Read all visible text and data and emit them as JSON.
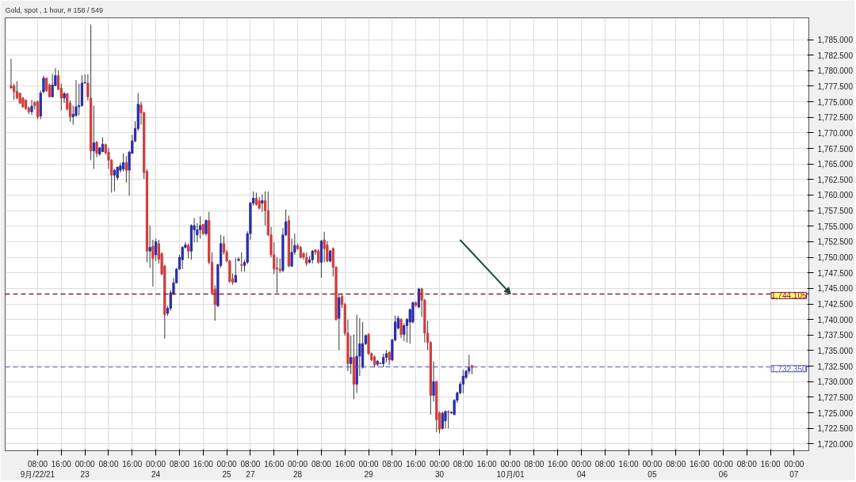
{
  "chart_data": {
    "type": "candlestick",
    "title": "Gold, spot , 1 hour, # 158 / 549",
    "colors": [
      "#d23c3c",
      "#d23c3c",
      "#d23c3c",
      "#d23c3c",
      "#d23c3c",
      "#d23c3c",
      "#d23c3c",
      "#2b2ba8",
      "#d23c3c",
      "#d23c3c",
      "#2b2ba8",
      "#2b2ba8",
      "#d23c3c",
      "#d23c3c",
      "#2b2ba8",
      "#2b2ba8",
      "#d23c3c",
      "#d23c3c",
      "#2b2ba8",
      "#d23c3c",
      "#d23c3c",
      "#2b2ba8",
      "#2b2ba8",
      "#2b2ba8",
      "#2b2ba8",
      "#2b2ba8",
      "#d23c3c",
      "#d23c3c",
      "#2b2ba8",
      "#d23c3c",
      "#2b2ba8",
      "#2b2ba8",
      "#d23c3c",
      "#d23c3c",
      "#d23c3c",
      "#2b2ba8",
      "#2b2ba8",
      "#2b2ba8",
      "#2b2ba8",
      "#d23c3c",
      "#2b2ba8",
      "#2b2ba8",
      "#2b2ba8",
      "#2b2ba8",
      "#d23c3c",
      "#d23c3c",
      "#d23c3c",
      "#2b2ba8",
      "#d23c3c",
      "#2b2ba8",
      "#d23c3c",
      "#d23c3c",
      "#d23c3c",
      "#2b2ba8",
      "#2b2ba8",
      "#2b2ba8",
      "#2b2ba8",
      "#2b2ba8",
      "#2b2ba8",
      "#2b2ba8",
      "#d23c3c",
      "#2b2ba8",
      "#2b2ba8",
      "#2b2ba8",
      "#2b2ba8",
      "#d23c3c",
      "#2b2ba8",
      "#d23c3c",
      "#d23c3c",
      "#d23c3c",
      "#2b2ba8",
      "#2b2ba8",
      "#d23c3c",
      "#d23c3c",
      "#d23c3c",
      "#d23c3c",
      "#2b2ba8",
      "#2b2ba8",
      "#d23c3c",
      "#2b2ba8",
      "#2b2ba8",
      "#2b2ba8",
      "#2b2ba8",
      "#d23c3c",
      "#d23c3c",
      "#2b2ba8",
      "#d23c3c",
      "#d23c3c",
      "#d23c3c",
      "#d23c3c",
      "#d23c3c",
      "#d23c3c",
      "#2b2ba8",
      "#2b2ba8",
      "#d23c3c",
      "#2b2ba8",
      "#2b2ba8",
      "#d23c3c",
      "#d23c3c",
      "#d23c3c",
      "#d23c3c",
      "#2b2ba8",
      "#2b2ba8",
      "#d23c3c",
      "#d23c3c",
      "#2b2ba8",
      "#d23c3c",
      "#d23c3c",
      "#2b2ba8",
      "#d23c3c",
      "#d23c3c",
      "#2b2ba8",
      "#d23c3c",
      "#d23c3c",
      "#d23c3c",
      "#2b2ba8",
      "#d23c3c",
      "#2b2ba8",
      "#2b2ba8",
      "#2b2ba8",
      "#2b2ba8",
      "#d23c3c",
      "#d23c3c",
      "#d23c3c",
      "#2b2ba8",
      "#d23c3c",
      "#2b2ba8",
      "#2b2ba8",
      "#d23c3c",
      "#2b2ba8",
      "#2b2ba8",
      "#2b2ba8",
      "#d23c3c",
      "#2b2ba8",
      "#2b2ba8",
      "#2b2ba8",
      "#2b2ba8",
      "#d23c3c",
      "#2b2ba8",
      "#d23c3c",
      "#d23c3c",
      "#d23c3c",
      "#d23c3c",
      "#2b2ba8",
      "#d23c3c",
      "#d23c3c",
      "#2b2ba8",
      "#2b2ba8",
      "#d23c3c",
      "#2b2ba8",
      "#2b2ba8",
      "#2b2ba8",
      "#2b2ba8",
      "#2b2ba8",
      "#2b2ba8",
      "#2b2ba8",
      "#d23c3c",
      null,
      null,
      null,
      null,
      null,
      null,
      null,
      null,
      null,
      null,
      null,
      null,
      null,
      null,
      null,
      null,
      null,
      null,
      null,
      null,
      null,
      null,
      null,
      null,
      null,
      null,
      null,
      null,
      null,
      null,
      null,
      null,
      null,
      null,
      null,
      null,
      null,
      null,
      null,
      null,
      null,
      null,
      null,
      null,
      null,
      null,
      null,
      null,
      null,
      null,
      null,
      null,
      null,
      null,
      null,
      null,
      null,
      null,
      null,
      null,
      null,
      null,
      null,
      null,
      null,
      null,
      null,
      null,
      null,
      null,
      null,
      null,
      null,
      null,
      null,
      null,
      null,
      null,
      null,
      null,
      null,
      null,
      null,
      null,
      null,
      null,
      null,
      null,
      null,
      null,
      null,
      null,
      null,
      null,
      null,
      null,
      null,
      null,
      null,
      null,
      null,
      null,
      null,
      null,
      null,
      null,
      null,
      null,
      null,
      null,
      null,
      null,
      null
    ],
    "grid": true,
    "categories": [
      null,
      null,
      null,
      null,
      null,
      null,
      null,
      null,
      null,
      "08:00\n9月/22/21",
      null,
      null,
      null,
      null,
      null,
      null,
      null,
      "16:00",
      null,
      null,
      null,
      null,
      null,
      null,
      null,
      "00:00\n23",
      null,
      null,
      null,
      null,
      null,
      null,
      null,
      "08:00",
      null,
      null,
      null,
      null,
      null,
      null,
      null,
      "16:00",
      null,
      null,
      null,
      null,
      null,
      null,
      null,
      "00:00\n24",
      null,
      null,
      null,
      null,
      null,
      null,
      null,
      "08:00",
      null,
      null,
      null,
      null,
      null,
      null,
      null,
      "16:00",
      null,
      null,
      null,
      null,
      null,
      null,
      null,
      "00:00\n25",
      null,
      null,
      null,
      null,
      null,
      null,
      null,
      "08:00\n27",
      null,
      null,
      null,
      null,
      null,
      null,
      null,
      "16:00",
      null,
      null,
      null,
      null,
      null,
      null,
      null,
      "00:00\n28",
      null,
      null,
      null,
      null,
      null,
      null,
      null,
      "08:00",
      null,
      null,
      null,
      null,
      null,
      null,
      null,
      "16:00",
      null,
      null,
      null,
      null,
      null,
      null,
      null,
      "00:00\n29",
      null,
      null,
      null,
      null,
      null,
      null,
      null,
      "08:00",
      null,
      null,
      null,
      null,
      null,
      null,
      null,
      "16:00",
      null,
      null,
      null,
      null,
      null,
      null,
      null,
      "00:00\n30",
      null,
      null,
      null,
      null,
      null,
      null,
      null,
      "08:00",
      null,
      null,
      null,
      null,
      null,
      null,
      null,
      "16:00",
      null,
      null,
      null,
      null,
      null,
      null,
      null,
      "00:00\n10月/01",
      null,
      null,
      null,
      null,
      null,
      null,
      null,
      "08:00",
      null,
      null,
      null,
      null,
      null,
      null,
      null,
      "16:00",
      null,
      null,
      null,
      null,
      null,
      null,
      null,
      "00:00\n04",
      null,
      null,
      null,
      null,
      null,
      null,
      null,
      "08:00",
      null,
      null,
      null,
      null,
      null,
      null,
      null,
      "16:00",
      null,
      null,
      null,
      null,
      null,
      null,
      null,
      "00:00\n05",
      null,
      null,
      null,
      null,
      null,
      null,
      null,
      "08:00",
      null,
      null,
      null,
      null,
      null,
      null,
      null,
      "16:00",
      null,
      null,
      null,
      null,
      null,
      null,
      null,
      "00:00\n06",
      null,
      null,
      null,
      null,
      null,
      null,
      null,
      "08:00",
      null,
      null,
      null,
      null,
      null,
      null,
      null,
      "16:00",
      null,
      null,
      null,
      null,
      null,
      null,
      null,
      "00:00\n07",
      null,
      null,
      null,
      null
    ],
    "ylim": [
      1718.9,
      1788.5
    ],
    "yticks": [
      {
        "value": 1720,
        "label": "1,720.000"
      },
      {
        "value": 1722.5,
        "label": "1,722.500"
      },
      {
        "value": 1725,
        "label": "1,725.000"
      },
      {
        "value": 1727.5,
        "label": "1,727.500"
      },
      {
        "value": 1730,
        "label": "1,730.000"
      },
      {
        "value": 1732.5,
        "label": "1,732.500"
      },
      {
        "value": 1735,
        "label": "1,735.000"
      },
      {
        "value": 1737.5,
        "label": "1,737.500"
      },
      {
        "value": 1740,
        "label": "1,740.000"
      },
      {
        "value": 1742.5,
        "label": "1,742.500"
      },
      {
        "value": 1745,
        "label": "1,745.000"
      },
      {
        "value": 1747.5,
        "label": "1,747.500"
      },
      {
        "value": 1750,
        "label": "1,750.000"
      },
      {
        "value": 1752.5,
        "label": "1,752.500"
      },
      {
        "value": 1755,
        "label": "1,755.000"
      },
      {
        "value": 1757.5,
        "label": "1,757.500"
      },
      {
        "value": 1760,
        "label": "1,760.000"
      },
      {
        "value": 1762.5,
        "label": "1,762.500"
      },
      {
        "value": 1765,
        "label": "1,765.000"
      },
      {
        "value": 1767.5,
        "label": "1,767.500"
      },
      {
        "value": 1770,
        "label": "1,770.000"
      },
      {
        "value": 1772.5,
        "label": "1,772.500"
      },
      {
        "value": 1775,
        "label": "1,775.000"
      },
      {
        "value": 1777.5,
        "label": "1,777.500"
      },
      {
        "value": 1780,
        "label": "1,780.000"
      },
      {
        "value": 1782.5,
        "label": "1,782.500"
      },
      {
        "value": 1785,
        "label": "1,785.000"
      }
    ],
    "ref_lines": [
      {
        "axis": "y",
        "value": 1744.105,
        "label": "1,744.105",
        "color": "#7b2040",
        "line_style": "dashed"
      },
      {
        "axis": "y",
        "value": 1732.35,
        "label": "1,732.350",
        "color": "#5a5ac8",
        "line_style": "dashed"
      }
    ],
    "ohlc": [
      [
        1777.6,
        1781.9,
        1777.2,
        1777.2
      ],
      [
        1777.5,
        1777.9,
        1775.3,
        1776.6
      ],
      [
        1776.7,
        1778.3,
        1775.4,
        1775.6
      ],
      [
        1776.4,
        1776.4,
        1774.6,
        1774.8
      ],
      [
        1775.6,
        1775.8,
        1774.0,
        1774.2
      ],
      [
        1775.3,
        1775.3,
        1773.7,
        1773.9
      ],
      [
        1774.0,
        1774.2,
        1773.0,
        1773.4
      ],
      [
        1773.4,
        1775.3,
        1772.9,
        1774.3
      ],
      [
        1774.9,
        1775.1,
        1773.8,
        1774.4
      ],
      [
        1775.0,
        1775.2,
        1772.2,
        1772.6
      ],
      [
        1772.7,
        1776.8,
        1772.2,
        1776.4
      ],
      [
        1776.6,
        1779.2,
        1776.4,
        1778.8
      ],
      [
        1778.8,
        1778.9,
        1776.6,
        1776.8
      ],
      [
        1777.7,
        1777.9,
        1775.7,
        1775.8
      ],
      [
        1775.8,
        1779.5,
        1775.7,
        1777.7
      ],
      [
        1777.6,
        1780.4,
        1777.5,
        1779.2
      ],
      [
        1779.2,
        1780.0,
        1776.9,
        1777.0
      ],
      [
        1777.2,
        1777.9,
        1773.6,
        1775.6
      ],
      [
        1775.6,
        1776.6,
        1774.8,
        1776.3
      ],
      [
        1776.3,
        1776.4,
        1773.6,
        1773.8
      ],
      [
        1774.8,
        1775.2,
        1771.8,
        1772.6
      ],
      [
        1772.6,
        1774.4,
        1771.3,
        1773.0
      ],
      [
        1772.8,
        1778.5,
        1772.6,
        1774.2
      ],
      [
        1774.2,
        1777.9,
        1772.8,
        1774.4
      ],
      [
        1774.4,
        1779.3,
        1774.2,
        1778.0
      ],
      [
        1778.0,
        1779.4,
        1778.0,
        1778.1
      ],
      [
        1778.0,
        1779.4,
        1775.2,
        1775.8
      ],
      [
        1775.6,
        1787.4,
        1765.6,
        1767.1
      ],
      [
        1767.1,
        1774.4,
        1764.2,
        1768.4
      ],
      [
        1768.5,
        1768.7,
        1766.1,
        1766.7
      ],
      [
        1766.6,
        1767.7,
        1766.3,
        1767.6
      ],
      [
        1767.0,
        1769.3,
        1766.9,
        1768.2
      ],
      [
        1768.1,
        1768.3,
        1766.5,
        1766.8
      ],
      [
        1766.9,
        1767.6,
        1764.2,
        1765.6
      ],
      [
        1765.6,
        1765.8,
        1760.4,
        1763.2
      ],
      [
        1763.2,
        1764.2,
        1760.6,
        1764.0
      ],
      [
        1762.8,
        1764.6,
        1762.4,
        1764.5
      ],
      [
        1764.0,
        1765.2,
        1763.6,
        1764.7
      ],
      [
        1764.2,
        1766.7,
        1763.8,
        1765.2
      ],
      [
        1765.2,
        1766.3,
        1762.0,
        1764.0
      ],
      [
        1764.0,
        1767.1,
        1759.9,
        1766.9
      ],
      [
        1766.7,
        1769.7,
        1766.7,
        1768.7
      ],
      [
        1768.7,
        1771.9,
        1768.5,
        1770.7
      ],
      [
        1770.7,
        1776.4,
        1770.3,
        1774.6
      ],
      [
        1774.5,
        1775.0,
        1771.3,
        1773.2
      ],
      [
        1773.2,
        1773.4,
        1762.6,
        1763.6
      ],
      [
        1763.8,
        1764.2,
        1749.2,
        1751.0
      ],
      [
        1751.0,
        1755.1,
        1748.3,
        1751.6
      ],
      [
        1751.8,
        1752.8,
        1745.3,
        1749.8
      ],
      [
        1750.4,
        1753.0,
        1749.4,
        1752.5
      ],
      [
        1752.2,
        1752.8,
        1749.0,
        1749.7
      ],
      [
        1750.6,
        1750.8,
        1747.1,
        1747.3
      ],
      [
        1748.6,
        1748.8,
        1736.9,
        1740.8
      ],
      [
        1741.0,
        1742.2,
        1740.6,
        1741.8
      ],
      [
        1741.8,
        1744.7,
        1741.4,
        1744.3
      ],
      [
        1744.1,
        1746.7,
        1743.9,
        1745.9
      ],
      [
        1745.9,
        1748.3,
        1745.8,
        1748.1
      ],
      [
        1748.1,
        1750.4,
        1748.0,
        1750.0
      ],
      [
        1749.6,
        1751.8,
        1748.1,
        1751.6
      ],
      [
        1751.6,
        1752.4,
        1751.4,
        1752.0
      ],
      [
        1751.9,
        1752.2,
        1749.8,
        1751.0
      ],
      [
        1751.0,
        1755.3,
        1749.6,
        1755.1
      ],
      [
        1754.4,
        1756.3,
        1752.4,
        1755.1
      ],
      [
        1753.6,
        1755.5,
        1752.4,
        1754.4
      ],
      [
        1754.4,
        1756.6,
        1753.0,
        1755.1
      ],
      [
        1755.3,
        1755.3,
        1753.6,
        1753.8
      ],
      [
        1753.8,
        1756.1,
        1753.4,
        1755.9
      ],
      [
        1755.9,
        1757.3,
        1748.9,
        1749.2
      ],
      [
        1749.2,
        1750.8,
        1744.1,
        1744.3
      ],
      [
        1744.9,
        1745.5,
        1739.8,
        1742.4
      ],
      [
        1742.2,
        1749.0,
        1742.0,
        1748.8
      ],
      [
        1748.7,
        1753.6,
        1748.3,
        1752.2
      ],
      [
        1752.2,
        1753.4,
        1750.4,
        1750.8
      ],
      [
        1750.8,
        1751.2,
        1749.2,
        1749.4
      ],
      [
        1749.4,
        1749.6,
        1745.9,
        1746.1
      ],
      [
        1746.5,
        1747.4,
        1745.6,
        1746.0
      ],
      [
        1746.0,
        1749.9,
        1745.9,
        1747.1
      ],
      [
        1749.5,
        1750.0,
        1749.3,
        1749.7
      ],
      [
        1748.8,
        1750.8,
        1747.7,
        1748.7
      ],
      [
        1748.7,
        1749.6,
        1747.7,
        1749.2
      ],
      [
        1749.2,
        1754.2,
        1748.9,
        1753.8
      ],
      [
        1753.8,
        1758.9,
        1752.8,
        1758.7
      ],
      [
        1758.7,
        1760.6,
        1758.3,
        1759.5
      ],
      [
        1759.5,
        1760.4,
        1758.3,
        1758.5
      ],
      [
        1759.1,
        1759.7,
        1757.7,
        1757.9
      ],
      [
        1758.7,
        1760.1,
        1757.3,
        1759.1
      ],
      [
        1759.1,
        1760.6,
        1755.1,
        1757.5
      ],
      [
        1757.5,
        1760.6,
        1753.4,
        1753.6
      ],
      [
        1753.6,
        1754.9,
        1750.0,
        1750.4
      ],
      [
        1750.4,
        1752.4,
        1747.3,
        1748.1
      ],
      [
        1748.3,
        1750.0,
        1744.3,
        1748.1
      ],
      [
        1748.1,
        1749.8,
        1747.5,
        1747.9
      ],
      [
        1747.9,
        1754.7,
        1747.6,
        1753.6
      ],
      [
        1753.6,
        1757.7,
        1753.4,
        1755.7
      ],
      [
        1755.9,
        1756.7,
        1748.4,
        1748.6
      ],
      [
        1748.6,
        1753.0,
        1748.4,
        1750.8
      ],
      [
        1750.8,
        1753.8,
        1750.4,
        1751.9
      ],
      [
        1751.9,
        1752.2,
        1751.2,
        1751.4
      ],
      [
        1751.6,
        1751.8,
        1749.8,
        1750.0
      ],
      [
        1750.6,
        1750.8,
        1749.6,
        1750.0
      ],
      [
        1750.0,
        1750.8,
        1748.6,
        1749.0
      ],
      [
        1749.2,
        1750.2,
        1749.0,
        1749.6
      ],
      [
        1749.6,
        1751.2,
        1749.0,
        1751.0
      ],
      [
        1751.2,
        1751.3,
        1750.4,
        1750.8
      ],
      [
        1751.0,
        1751.3,
        1749.0,
        1749.2
      ],
      [
        1749.2,
        1752.8,
        1746.7,
        1752.6
      ],
      [
        1752.8,
        1754.1,
        1749.2,
        1751.4
      ],
      [
        1752.0,
        1752.6,
        1749.2,
        1749.4
      ],
      [
        1749.4,
        1751.2,
        1749.2,
        1751.0
      ],
      [
        1751.4,
        1751.6,
        1746.9,
        1748.4
      ],
      [
        1748.4,
        1748.6,
        1739.8,
        1740.0
      ],
      [
        1740.2,
        1744.1,
        1735.1,
        1743.5
      ],
      [
        1743.7,
        1744.1,
        1741.8,
        1742.4
      ],
      [
        1742.4,
        1742.7,
        1737.4,
        1737.8
      ],
      [
        1737.8,
        1740.0,
        1731.7,
        1732.9
      ],
      [
        1732.9,
        1737.4,
        1731.2,
        1733.9
      ],
      [
        1733.9,
        1737.6,
        1727.2,
        1729.6
      ],
      [
        1729.6,
        1740.8,
        1728.2,
        1734.1
      ],
      [
        1734.1,
        1740.2,
        1730.9,
        1736.1
      ],
      [
        1732.3,
        1739.6,
        1732.1,
        1736.1
      ],
      [
        1736.1,
        1737.6,
        1735.9,
        1737.4
      ],
      [
        1737.6,
        1737.8,
        1734.3,
        1734.5
      ],
      [
        1734.5,
        1734.7,
        1733.3,
        1733.5
      ],
      [
        1734.0,
        1734.2,
        1732.3,
        1732.7
      ],
      [
        1732.8,
        1733.5,
        1732.5,
        1733.3
      ],
      [
        1733.0,
        1733.1,
        1732.9,
        1732.9
      ],
      [
        1732.9,
        1734.5,
        1732.3,
        1733.9
      ],
      [
        1733.9,
        1735.1,
        1733.1,
        1734.5
      ],
      [
        1734.7,
        1734.9,
        1732.7,
        1733.5
      ],
      [
        1733.5,
        1736.9,
        1733.3,
        1736.7
      ],
      [
        1736.7,
        1740.6,
        1736.5,
        1739.6
      ],
      [
        1738.6,
        1740.6,
        1738.4,
        1740.2
      ],
      [
        1740.0,
        1740.2,
        1737.0,
        1737.6
      ],
      [
        1737.6,
        1739.4,
        1736.5,
        1739.0
      ],
      [
        1739.0,
        1740.2,
        1736.3,
        1740.0
      ],
      [
        1739.6,
        1741.8,
        1736.1,
        1741.6
      ],
      [
        1739.6,
        1742.9,
        1739.4,
        1742.7
      ],
      [
        1742.7,
        1742.9,
        1742.0,
        1742.3
      ],
      [
        1742.0,
        1745.1,
        1741.8,
        1744.9
      ],
      [
        1744.9,
        1745.1,
        1740.4,
        1743.1
      ],
      [
        1743.1,
        1743.3,
        1736.3,
        1737.8
      ],
      [
        1737.8,
        1739.8,
        1735.1,
        1736.3
      ],
      [
        1736.3,
        1736.5,
        1724.7,
        1727.8
      ],
      [
        1727.8,
        1733.3,
        1726.8,
        1730.0
      ],
      [
        1730.0,
        1730.2,
        1721.9,
        1723.9
      ],
      [
        1725.0,
        1725.2,
        1721.7,
        1722.3
      ],
      [
        1722.5,
        1725.2,
        1722.3,
        1724.9
      ],
      [
        1723.7,
        1725.4,
        1722.5,
        1725.2
      ],
      [
        1725.2,
        1725.4,
        1722.5,
        1725.1
      ],
      [
        1725.0,
        1725.2,
        1724.8,
        1725.1
      ],
      [
        1724.7,
        1727.2,
        1724.7,
        1727.0
      ],
      [
        1727.0,
        1728.4,
        1726.6,
        1728.2
      ],
      [
        1728.2,
        1730.0,
        1728.0,
        1729.6
      ],
      [
        1729.6,
        1731.9,
        1728.1,
        1730.9
      ],
      [
        1730.7,
        1731.9,
        1730.4,
        1731.7
      ],
      [
        1731.7,
        1734.3,
        1731.2,
        1732.3
      ],
      [
        1732.6,
        1732.7,
        1731.2,
        1732.3
      ],
      null,
      null,
      null,
      null,
      null,
      null,
      null,
      null,
      null,
      null,
      null,
      null,
      null,
      null,
      null,
      null,
      null,
      null,
      null,
      null,
      null,
      null,
      null,
      null,
      null,
      null,
      null,
      null,
      null,
      null,
      null,
      null,
      null,
      null,
      null,
      null,
      null,
      null,
      null,
      null,
      null,
      null,
      null,
      null,
      null,
      null,
      null,
      null,
      null,
      null,
      null,
      null,
      null,
      null,
      null,
      null,
      null,
      null,
      null,
      null,
      null,
      null,
      null,
      null,
      null,
      null,
      null,
      null,
      null,
      null,
      null,
      null,
      null,
      null,
      null,
      null,
      null,
      null,
      null,
      null,
      null,
      null,
      null,
      null,
      null,
      null,
      null,
      null,
      null,
      null,
      null,
      null,
      null,
      null,
      null,
      null,
      null,
      null,
      null,
      null,
      null,
      null,
      null,
      null,
      null,
      null,
      null,
      null,
      null,
      null,
      null,
      null,
      null
    ]
  }
}
